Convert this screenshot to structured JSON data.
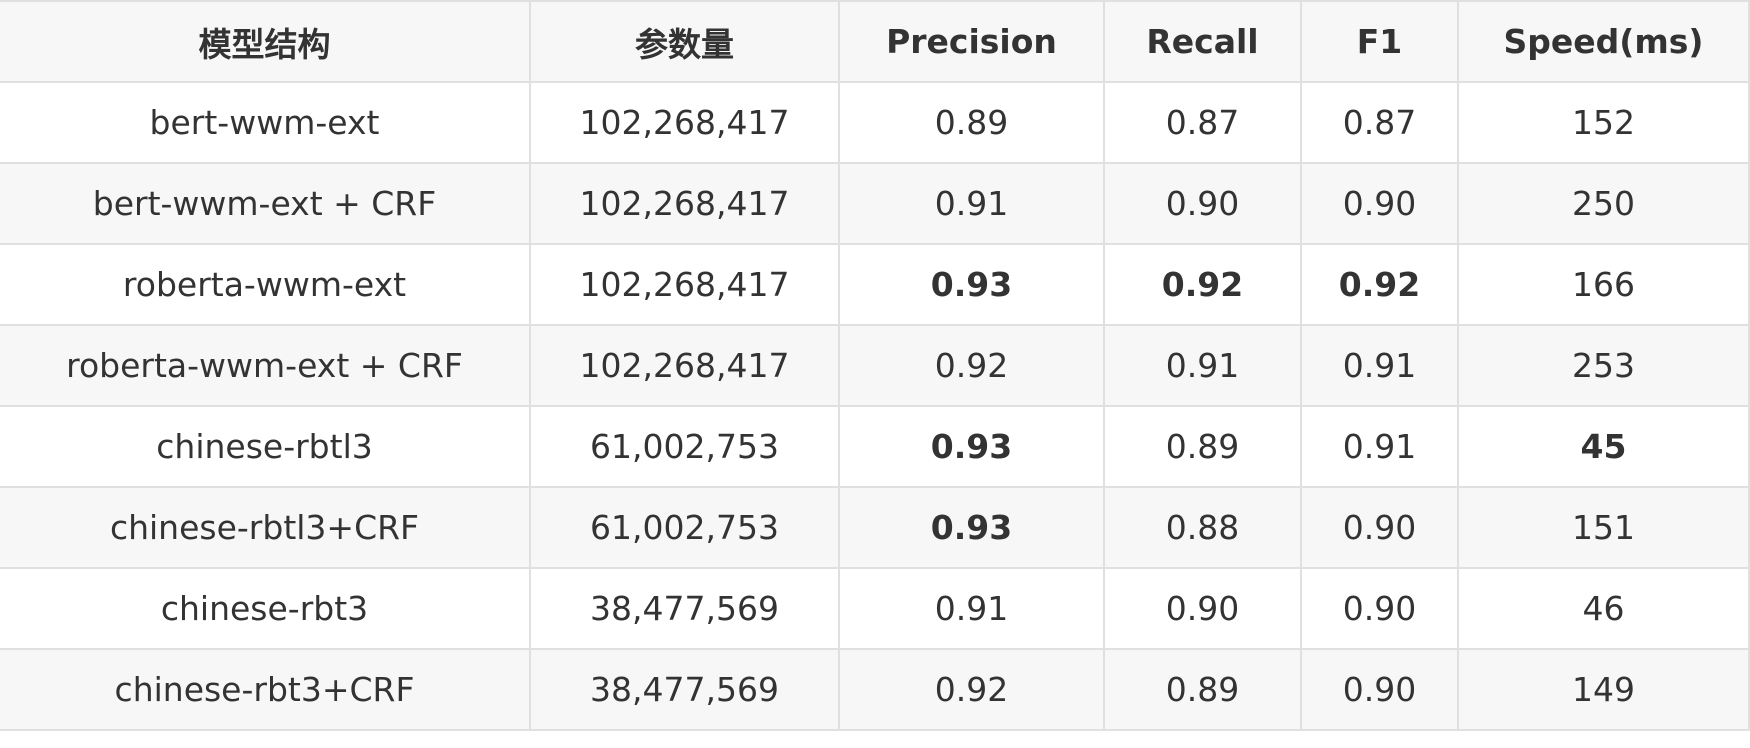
{
  "table": {
    "headers": [
      "模型结构",
      "参数量",
      "Precision",
      "Recall",
      "F1",
      "Speed(ms)"
    ],
    "rows": [
      {
        "model": "bert-wwm-ext",
        "params": "102,268,417",
        "precision": "0.89",
        "recall": "0.87",
        "f1": "0.87",
        "speed": "152",
        "bold": []
      },
      {
        "model": "bert-wwm-ext + CRF",
        "params": "102,268,417",
        "precision": "0.91",
        "recall": "0.90",
        "f1": "0.90",
        "speed": "250",
        "bold": []
      },
      {
        "model": "roberta-wwm-ext",
        "params": "102,268,417",
        "precision": "0.93",
        "recall": "0.92",
        "f1": "0.92",
        "speed": "166",
        "bold": [
          "precision",
          "recall",
          "f1"
        ]
      },
      {
        "model": "roberta-wwm-ext + CRF",
        "params": "102,268,417",
        "precision": "0.92",
        "recall": "0.91",
        "f1": "0.91",
        "speed": "253",
        "bold": []
      },
      {
        "model": "chinese-rbtl3",
        "params": "61,002,753",
        "precision": "0.93",
        "recall": "0.89",
        "f1": "0.91",
        "speed": "45",
        "bold": [
          "precision",
          "speed"
        ]
      },
      {
        "model": "chinese-rbtl3+CRF",
        "params": "61,002,753",
        "precision": "0.93",
        "recall": "0.88",
        "f1": "0.90",
        "speed": "151",
        "bold": [
          "precision"
        ]
      },
      {
        "model": "chinese-rbt3",
        "params": "38,477,569",
        "precision": "0.91",
        "recall": "0.90",
        "f1": "0.90",
        "speed": "46",
        "bold": []
      },
      {
        "model": "chinese-rbt3+CRF",
        "params": "38,477,569",
        "precision": "0.92",
        "recall": "0.89",
        "f1": "0.90",
        "speed": "149",
        "bold": []
      }
    ]
  }
}
